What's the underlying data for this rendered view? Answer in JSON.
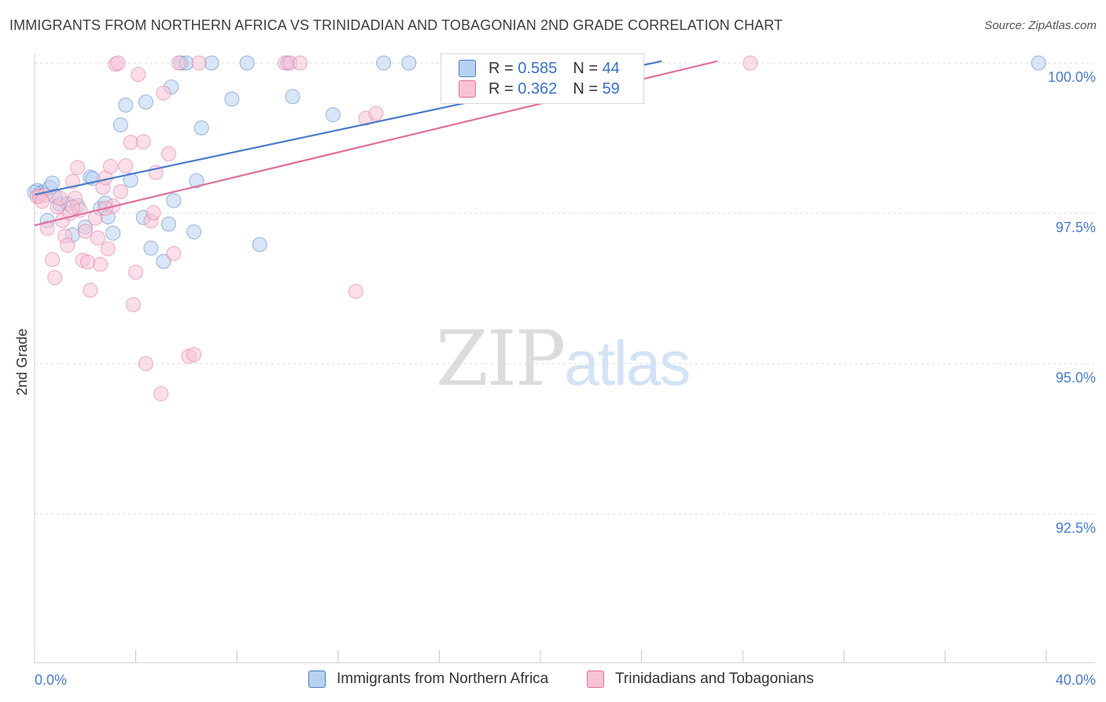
{
  "title": "IMMIGRANTS FROM NORTHERN AFRICA VS TRINIDADIAN AND TOBAGONIAN 2ND GRADE CORRELATION CHART",
  "source": "Source: ZipAtlas.com",
  "watermark": {
    "zip": "ZIP",
    "atlas": "atlas"
  },
  "legend": {
    "rows": [
      {
        "r_label": "R =",
        "r_value": "0.585",
        "n_label": "N =",
        "n_value": "44"
      },
      {
        "r_label": "R =",
        "r_value": "0.362",
        "n_label": "N =",
        "n_value": "59"
      }
    ]
  },
  "bottom_legend": [
    "Immigrants from Northern Africa",
    "Trinidadians and Tobagonians"
  ],
  "colors": {
    "blue": "#4a7cc9",
    "pink": "#e0709a",
    "blue_fill": "#b9d1f0",
    "pink_fill": "#f8c3d6"
  },
  "chart_data": {
    "type": "scatter",
    "ylabel": "2nd Grade",
    "x_tick_labels": [
      "0.0%",
      "40.0%"
    ],
    "y_tick_labels": [
      "100.0%",
      "97.5%",
      "95.0%",
      "92.5%"
    ],
    "y_ticks": [
      100.0,
      97.5,
      95.0,
      92.5
    ],
    "xlim": [
      0,
      40
    ],
    "ylim": [
      90.4,
      100.2
    ],
    "series": [
      {
        "name": "Immigrants from Northern Africa",
        "color": "#4a7cc9",
        "trend": {
          "x0": 0,
          "y0": 97.81,
          "x1": 24.8,
          "y1": 100.03
        },
        "points": [
          [
            0.1,
            97.88
          ],
          [
            0.2,
            97.83
          ],
          [
            0.3,
            97.85
          ],
          [
            0.5,
            97.38
          ],
          [
            0.6,
            97.93
          ],
          [
            0.7,
            98.0
          ],
          [
            0.8,
            97.78
          ],
          [
            1.0,
            97.65
          ],
          [
            1.3,
            97.66
          ],
          [
            1.5,
            97.14
          ],
          [
            1.7,
            97.63
          ],
          [
            2.0,
            97.27
          ],
          [
            2.2,
            98.1
          ],
          [
            2.3,
            98.08
          ],
          [
            2.6,
            97.58
          ],
          [
            2.8,
            97.67
          ],
          [
            2.9,
            97.44
          ],
          [
            3.1,
            97.17
          ],
          [
            3.4,
            98.97
          ],
          [
            3.6,
            99.3
          ],
          [
            3.8,
            98.05
          ],
          [
            4.3,
            97.43
          ],
          [
            4.4,
            99.35
          ],
          [
            4.6,
            96.92
          ],
          [
            5.1,
            96.7
          ],
          [
            5.3,
            97.32
          ],
          [
            5.4,
            99.6
          ],
          [
            5.5,
            97.71
          ],
          [
            5.8,
            100.0
          ],
          [
            6.0,
            100.0
          ],
          [
            6.3,
            97.19
          ],
          [
            6.4,
            98.04
          ],
          [
            6.6,
            98.92
          ],
          [
            7.0,
            100.0
          ],
          [
            7.8,
            99.4
          ],
          [
            8.4,
            100.0
          ],
          [
            8.9,
            96.98
          ],
          [
            10.0,
            100.0
          ],
          [
            10.2,
            99.44
          ],
          [
            11.8,
            99.14
          ],
          [
            13.8,
            100.0
          ],
          [
            14.8,
            100.0
          ],
          [
            39.7,
            100.0
          ],
          [
            0.0,
            97.85
          ]
        ]
      },
      {
        "name": "Trinidadians and Tobagonians",
        "color": "#e0709a",
        "trend": {
          "x0": 0,
          "y0": 97.3,
          "x1": 27.0,
          "y1": 100.03
        },
        "points": [
          [
            0.1,
            97.78
          ],
          [
            0.2,
            97.78
          ],
          [
            0.4,
            97.8
          ],
          [
            0.5,
            97.25
          ],
          [
            0.7,
            96.73
          ],
          [
            0.8,
            96.43
          ],
          [
            0.9,
            97.61
          ],
          [
            1.0,
            97.75
          ],
          [
            1.1,
            97.38
          ],
          [
            1.2,
            97.12
          ],
          [
            1.3,
            96.97
          ],
          [
            1.4,
            97.5
          ],
          [
            1.5,
            98.03
          ],
          [
            1.6,
            97.75
          ],
          [
            1.7,
            98.26
          ],
          [
            1.8,
            97.55
          ],
          [
            1.9,
            96.72
          ],
          [
            2.0,
            97.2
          ],
          [
            2.1,
            96.69
          ],
          [
            2.2,
            96.22
          ],
          [
            2.4,
            97.42
          ],
          [
            2.5,
            97.09
          ],
          [
            2.6,
            96.65
          ],
          [
            2.7,
            97.93
          ],
          [
            2.8,
            98.09
          ],
          [
            2.9,
            96.91
          ],
          [
            3.0,
            98.28
          ],
          [
            3.1,
            97.62
          ],
          [
            3.2,
            99.98
          ],
          [
            3.3,
            100.0
          ],
          [
            3.4,
            97.86
          ],
          [
            3.6,
            98.29
          ],
          [
            3.8,
            98.68
          ],
          [
            3.9,
            95.98
          ],
          [
            4.0,
            96.52
          ],
          [
            4.1,
            99.81
          ],
          [
            4.3,
            98.69
          ],
          [
            4.4,
            95.0
          ],
          [
            4.6,
            97.37
          ],
          [
            4.7,
            97.51
          ],
          [
            4.8,
            98.18
          ],
          [
            5.0,
            94.5
          ],
          [
            5.1,
            99.5
          ],
          [
            5.3,
            98.49
          ],
          [
            5.5,
            96.83
          ],
          [
            6.1,
            95.12
          ],
          [
            6.3,
            95.15
          ],
          [
            6.5,
            100.0
          ],
          [
            9.9,
            100.0
          ],
          [
            10.1,
            100.0
          ],
          [
            10.5,
            100.0
          ],
          [
            13.1,
            99.08
          ],
          [
            13.5,
            99.16
          ],
          [
            12.7,
            96.2
          ],
          [
            28.3,
            100.0
          ],
          [
            5.7,
            100.0
          ],
          [
            2.8,
            97.58
          ],
          [
            0.3,
            97.7
          ],
          [
            1.5,
            97.6
          ]
        ]
      }
    ]
  }
}
